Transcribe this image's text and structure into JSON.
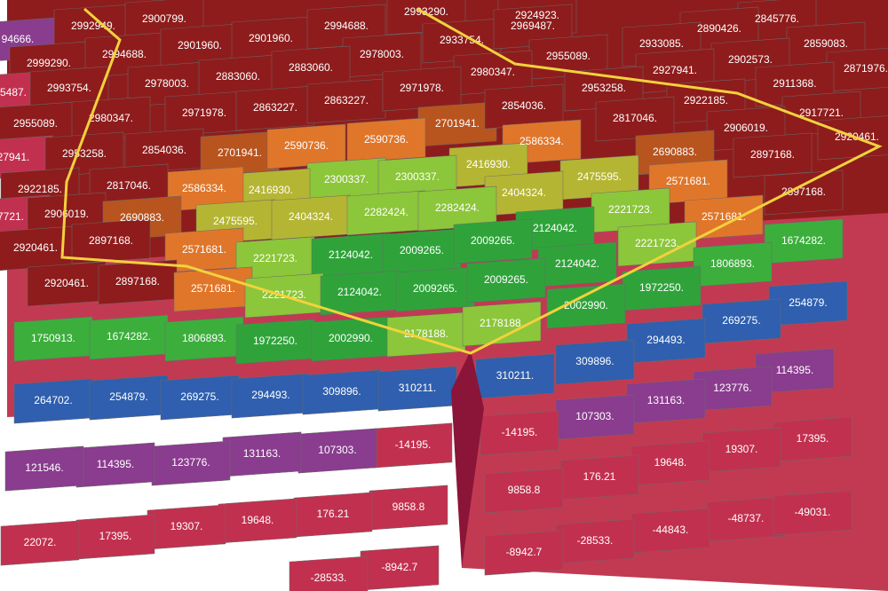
{
  "labels": [
    "94666.",
    "2992949.",
    "2900799.",
    "2993290.",
    "2924923.",
    "2845776.",
    "2999290.",
    "2994688.",
    "2901960.",
    "2901960.",
    "2994688.",
    "2933754.",
    "2969487.",
    "2890426.",
    "2933085.",
    "2859083.",
    "2978003.",
    "2955089.",
    "2902573.",
    "2871976.",
    "5487.",
    "2993754.",
    "2978003.",
    "2883060.",
    "2883060.",
    "2980347.",
    "2927941.",
    "2911368.",
    "2955089.",
    "2980347.",
    "2971978.",
    "2863227.",
    "2863227.",
    "2971978.",
    "2953258.",
    "2922185.",
    "2917721.",
    "2701941.",
    "2854036.",
    "2817046.",
    "2906019.",
    "2920461.",
    "27941.",
    "2953258.",
    "2854036.",
    "2701941.",
    "2590736.",
    "2590736.",
    "2586334.",
    "2690883.",
    "2897168.",
    "2416930.",
    "2300337.",
    "2300337.",
    "2475595.",
    "2571681.",
    "2416930.",
    "2586334.",
    "2817046.",
    "2922185.",
    "2404324.",
    "2897168.",
    "7721.",
    "2906019.",
    "2690883.",
    "2475595.",
    "2404324.",
    "2282424.",
    "2282424.",
    "2221723.",
    "2571681.",
    "1674282.",
    "2124042.",
    "2920461.",
    "2897168.",
    "2571681.",
    "2221723.",
    "2124042.",
    "2009265.",
    "2009265.",
    "2221723.",
    "2124042.",
    "1806893.",
    "2920461.",
    "2897168.",
    "2571681.",
    "2221723.",
    "2124042.",
    "2009265.",
    "2009265.",
    "1972250.",
    "254879.",
    "2002990.",
    "269275.",
    "1750913.",
    "1674282.",
    "1806893.",
    "1972250.",
    "2002990.",
    "2178188.",
    "2178188.",
    "294493.",
    "309896.",
    "114395.",
    "264702.",
    "254879.",
    "269275.",
    "294493.",
    "309896.",
    "310211.",
    "310211.",
    "123776.",
    "131163.",
    "107303.",
    "-14195.",
    "-14195.",
    "17395.",
    "19307.",
    "19648.",
    "176.21",
    "107303.",
    "131163.",
    "123776.",
    "114395.",
    "121546.",
    "9858.8",
    "9858.8",
    "176.21",
    "19648.",
    "19307.",
    "17395.",
    "22072.",
    "-48737.",
    "-49031.",
    "-44843.",
    "-28533.",
    "-8942.7",
    "-8942.7",
    "-28533."
  ]
}
